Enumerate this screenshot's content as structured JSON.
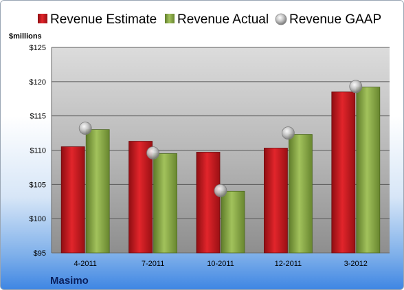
{
  "chart_data": {
    "type": "bar",
    "ylabel": "$millions",
    "ylim": [
      95,
      125
    ],
    "yticks": [
      95,
      100,
      105,
      110,
      115,
      120,
      125
    ],
    "ytick_labels": [
      "$95",
      "$100",
      "$105",
      "$110",
      "$115",
      "$120",
      "$125"
    ],
    "categories": [
      "4-2011",
      "7-2011",
      "10-2011",
      "12-2011",
      "3-2012"
    ],
    "series": [
      {
        "name": "Revenue Estimate",
        "kind": "bar",
        "color": "#c8161d",
        "values": [
          110.5,
          111.3,
          109.7,
          110.3,
          118.5
        ]
      },
      {
        "name": "Revenue Actual",
        "kind": "bar",
        "color": "#8fb04b",
        "values": [
          113.0,
          109.5,
          104.0,
          112.3,
          119.2
        ]
      },
      {
        "name": "Revenue GAAP",
        "kind": "marker",
        "color": "#b9b9b9",
        "values": [
          113.2,
          109.6,
          104.1,
          112.5,
          119.3
        ]
      }
    ],
    "grid": true,
    "legend_position": "top"
  },
  "company": "Masimo"
}
